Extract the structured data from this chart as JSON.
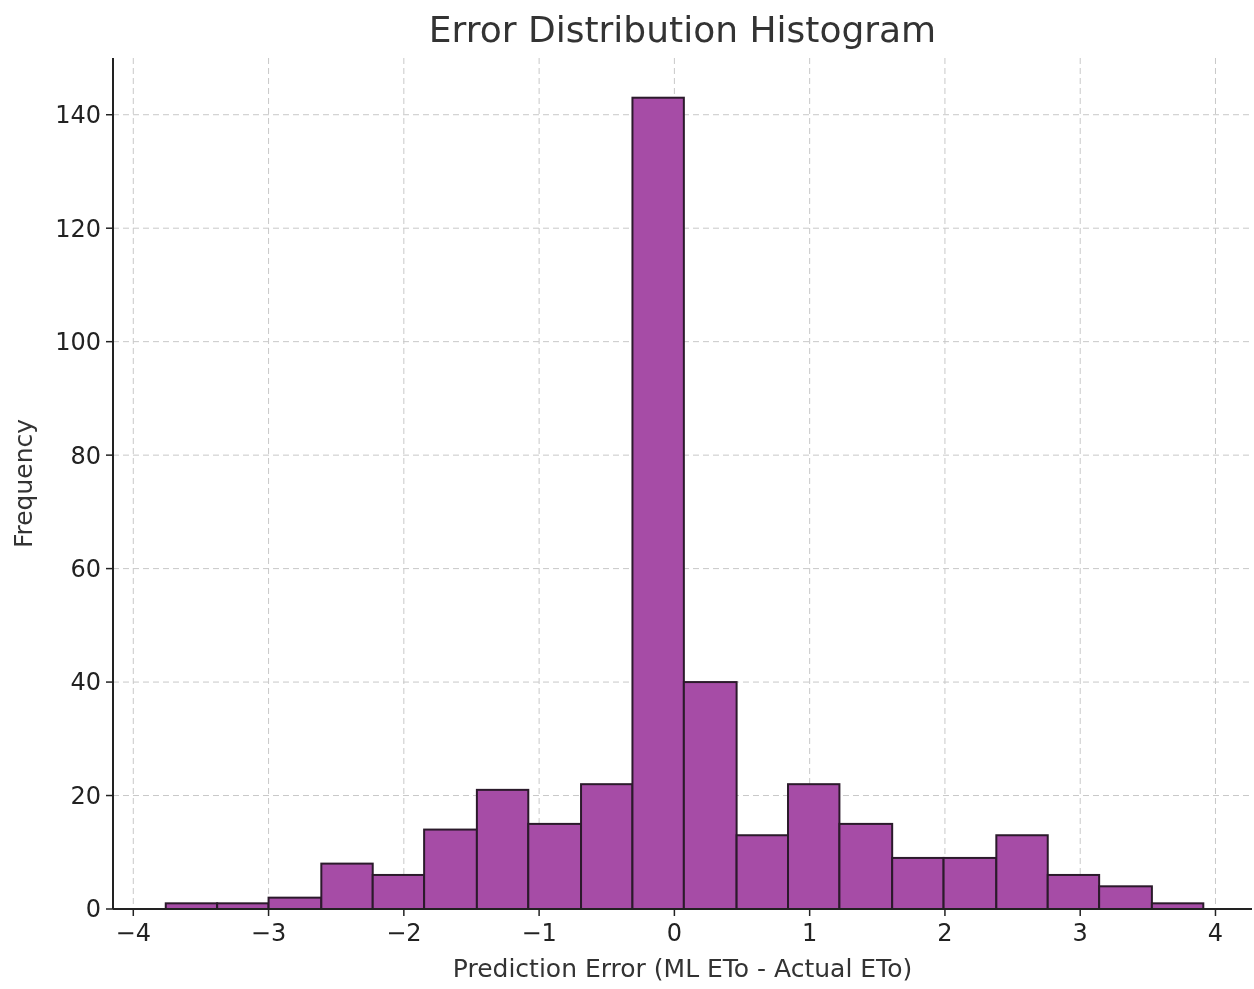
{
  "chart_data": {
    "type": "histogram",
    "title": "Error Distribution Histogram",
    "xlabel": "Prediction Error (ML ETo - Actual ETo)",
    "ylabel": "Frequency",
    "bins": [
      -3.76,
      -3.38,
      -3.0,
      -2.61,
      -2.23,
      -1.85,
      -1.46,
      -1.08,
      -0.69,
      -0.31,
      0.07,
      0.46,
      0.84,
      1.22,
      1.61,
      1.99,
      2.38,
      2.76,
      3.14,
      3.53,
      3.91
    ],
    "values": [
      1,
      1,
      2,
      8,
      6,
      14,
      21,
      15,
      22,
      143,
      40,
      13,
      22,
      15,
      9,
      9,
      13,
      6,
      4,
      1
    ],
    "color": "#a64ca6",
    "xlim": [
      -4.15,
      4.27
    ],
    "xticks": [
      {
        "value": -4,
        "label": "−4"
      },
      {
        "value": -3,
        "label": "−3"
      },
      {
        "value": -2,
        "label": "−2"
      },
      {
        "value": -1,
        "label": "−1"
      },
      0,
      1,
      2,
      3,
      4
    ],
    "ylim": [
      0,
      150
    ],
    "yticks": [
      0,
      20,
      40,
      60,
      80,
      100,
      120,
      140
    ],
    "grid": true
  }
}
